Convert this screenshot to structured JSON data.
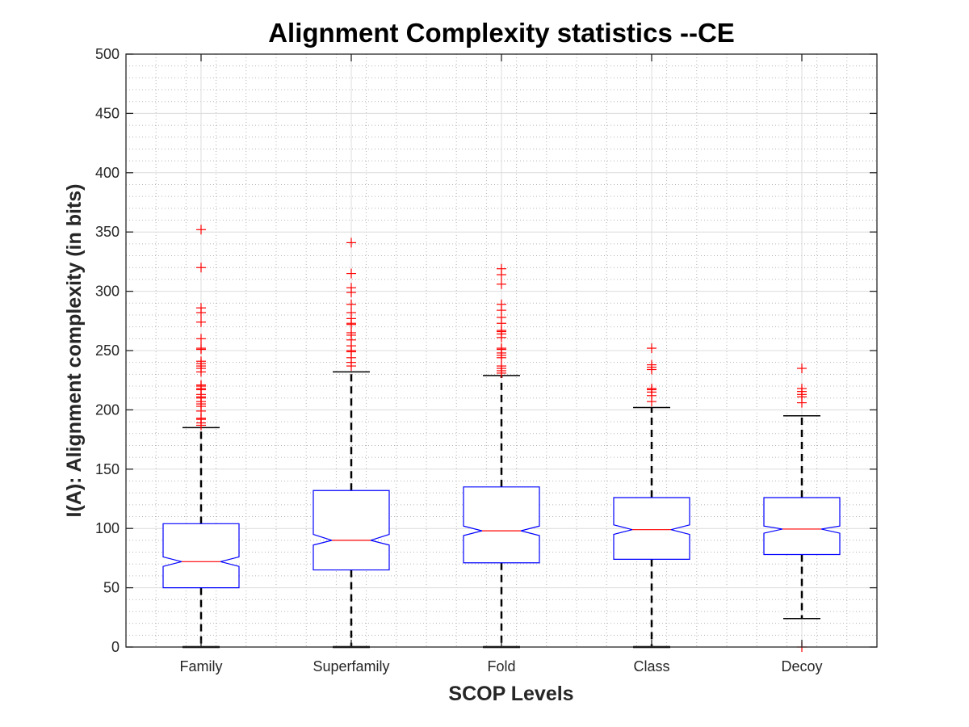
{
  "chart_data": {
    "type": "boxplot",
    "title": "Alignment Complexity statistics --CE",
    "xlabel": "SCOP Levels",
    "ylabel": "I(A): Alignment complexity (in bits)",
    "ylim": [
      0,
      500
    ],
    "yticks": [
      0,
      50,
      100,
      150,
      200,
      250,
      300,
      350,
      400,
      450,
      500
    ],
    "ytick_labels": [
      "0",
      "50",
      "100",
      "150",
      "200",
      "250",
      "300",
      "350",
      "400",
      "450",
      "500"
    ],
    "grid": "major and minor",
    "notched": true,
    "categories": [
      "Family",
      "Superfamily",
      "Fold",
      "Class",
      "Decoy"
    ],
    "series": [
      {
        "name": "Family",
        "whisker_low": 0,
        "q1": 50,
        "median": 72,
        "q3": 104,
        "whisker_high": 185,
        "notch_low": 68,
        "notch_high": 76,
        "outliers": [
          352,
          320,
          286,
          282,
          274,
          260,
          252,
          251,
          241,
          239,
          237,
          235,
          232,
          221,
          220,
          218,
          217,
          213,
          211,
          210,
          207,
          205,
          203,
          199,
          193,
          192,
          189,
          187
        ]
      },
      {
        "name": "Superfamily",
        "whisker_low": 0,
        "q1": 65,
        "median": 90,
        "q3": 132,
        "whisker_high": 232,
        "notch_low": 86,
        "notch_high": 95,
        "outliers": [
          341,
          315,
          303,
          299,
          289,
          282,
          277,
          273,
          272,
          265,
          263,
          259,
          254,
          250,
          249,
          244,
          240,
          237
        ]
      },
      {
        "name": "Fold",
        "whisker_low": 0,
        "q1": 71,
        "median": 98,
        "q3": 135,
        "whisker_high": 229,
        "notch_low": 94,
        "notch_high": 102,
        "outliers": [
          319,
          314,
          306,
          289,
          284,
          278,
          273,
          267,
          266,
          264,
          261,
          252,
          251,
          248,
          246,
          244,
          237,
          235,
          233,
          231
        ]
      },
      {
        "name": "Class",
        "whisker_low": 0,
        "q1": 74,
        "median": 99,
        "q3": 126,
        "whisker_high": 202,
        "notch_low": 95,
        "notch_high": 103,
        "outliers": [
          252,
          238,
          236,
          234,
          218,
          217,
          215,
          212,
          207
        ]
      },
      {
        "name": "Decoy",
        "whisker_low": 24,
        "q1": 78,
        "median": 99.5,
        "q3": 126,
        "whisker_high": 195,
        "notch_low": 96,
        "notch_high": 102,
        "outliers": [
          235,
          218,
          215.5,
          213,
          211,
          206,
          0
        ]
      }
    ],
    "colors": {
      "box": "#0000ff",
      "median": "#ff0000",
      "outlier": "#ff0000",
      "whisker": "#000000",
      "grid_major": "#dcdcdc",
      "grid_minor": "#b4b4b4",
      "axis": "#262626"
    }
  }
}
